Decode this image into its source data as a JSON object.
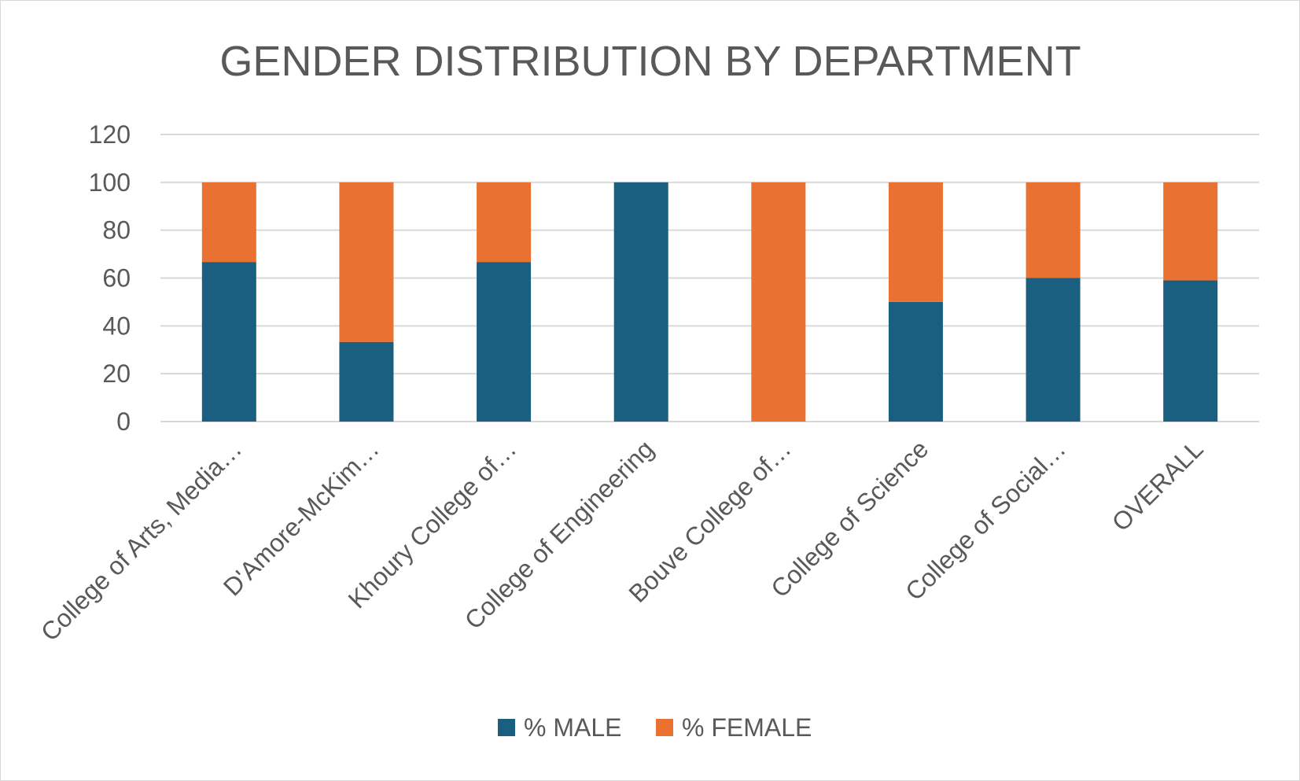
{
  "chart_data": {
    "type": "bar",
    "stacked": true,
    "title": "GENDER DISTRIBUTION BY DEPARTMENT",
    "xlabel": "",
    "ylabel": "",
    "ylim": [
      0,
      120
    ],
    "yticks": [
      "0",
      "20",
      "40",
      "60",
      "80",
      "100",
      "120"
    ],
    "grid": true,
    "legend_position": "bottom",
    "categories": [
      "College of Arts, Media…",
      "D'Amore-McKim…",
      "Khoury College of…",
      "College of Engineering",
      "Bouve College of…",
      "College of Science",
      "College of Social…",
      "OVERALL"
    ],
    "series": [
      {
        "name": "% MALE",
        "color": "#1a5f80",
        "values": [
          66.7,
          33.3,
          66.7,
          100,
          0,
          50,
          60,
          59
        ]
      },
      {
        "name": "% FEMALE",
        "color": "#e97132",
        "values": [
          33.3,
          66.7,
          33.3,
          0,
          100,
          50,
          40,
          41
        ]
      }
    ]
  }
}
